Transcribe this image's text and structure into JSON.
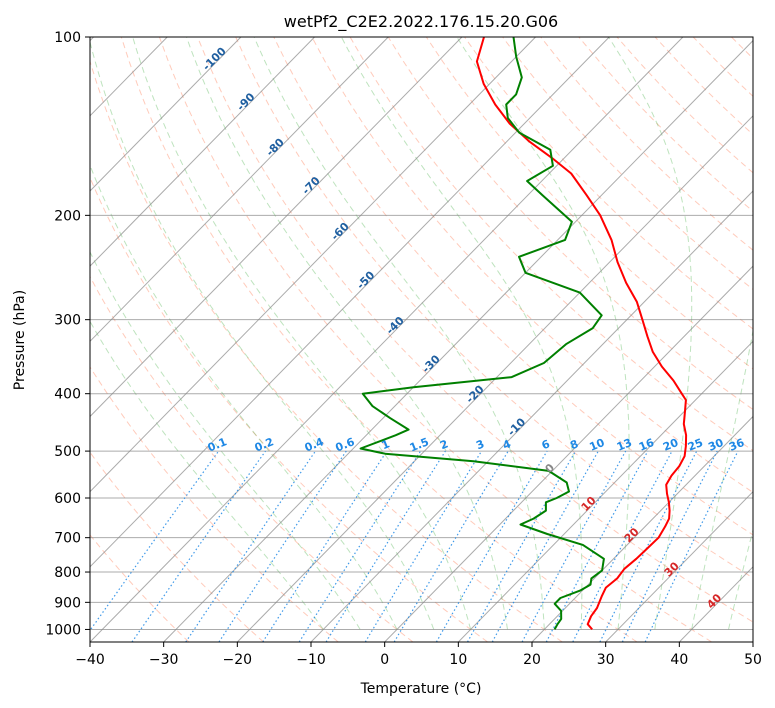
{
  "chart_data": {
    "type": "line",
    "title": "wetPf2_C2E2.2022.176.15.20.G06",
    "xlabel": "Temperature (°C)",
    "ylabel": "Pressure (hPa)",
    "xlim": [
      -40,
      50
    ],
    "ylim": [
      1050,
      100
    ],
    "x_ticks": [
      "−40",
      "−30",
      "−20",
      "−10",
      "0",
      "10",
      "20",
      "30",
      "40",
      "50"
    ],
    "y_ticks": [
      "100",
      "200",
      "300",
      "400",
      "500",
      "600",
      "700",
      "800",
      "900",
      "1000"
    ],
    "colors": {
      "temperature": "#ff0000",
      "dewpoint": "#008000",
      "dry_adiabat": "#ff8c69",
      "moist_adiabat": "#5cb85c",
      "mixing_ratio": "#1e88e5",
      "isotherm": "#888888",
      "dry_adiabat_label": "#1f5fa0",
      "moist_adiabat_label": "#d62728"
    },
    "series": [
      {
        "name": "Temperature",
        "points": [
          [
            26.5,
            1000
          ],
          [
            25.2,
            980
          ],
          [
            24.6,
            950
          ],
          [
            24.3,
            920
          ],
          [
            23.4,
            880
          ],
          [
            22.8,
            850
          ],
          [
            23.1,
            820
          ],
          [
            22.8,
            790
          ],
          [
            23.1,
            760
          ],
          [
            23.2,
            730
          ],
          [
            23.3,
            700
          ],
          [
            22.7,
            670
          ],
          [
            22.2,
            650
          ],
          [
            21.2,
            630
          ],
          [
            20.0,
            610
          ],
          [
            18.6,
            590
          ],
          [
            17.3,
            570
          ],
          [
            16.8,
            550
          ],
          [
            16.6,
            530
          ],
          [
            16.0,
            510
          ],
          [
            14.8,
            490
          ],
          [
            13.4,
            470
          ],
          [
            11.6,
            450
          ],
          [
            10.2,
            430
          ],
          [
            8.7,
            410
          ],
          [
            7.3,
            400
          ],
          [
            4.4,
            380
          ],
          [
            1.0,
            360
          ],
          [
            -2.2,
            340
          ],
          [
            -5.0,
            320
          ],
          [
            -7.9,
            300
          ],
          [
            -11.0,
            280
          ],
          [
            -15.0,
            260
          ],
          [
            -18.9,
            240
          ],
          [
            -22.7,
            220
          ],
          [
            -27.5,
            200
          ],
          [
            -32.0,
            185
          ],
          [
            -37.0,
            170
          ],
          [
            -41.7,
            160
          ],
          [
            -47.0,
            150
          ],
          [
            -52.0,
            140
          ],
          [
            -56.5,
            130
          ],
          [
            -60.8,
            120
          ],
          [
            -64.7,
            110
          ],
          [
            -67.0,
            100
          ]
        ]
      },
      {
        "name": "Dewpoint",
        "points": [
          [
            21.4,
            1000
          ],
          [
            21.1,
            980
          ],
          [
            20.9,
            960
          ],
          [
            19.8,
            930
          ],
          [
            18.0,
            905
          ],
          [
            18.0,
            885
          ],
          [
            19.7,
            860
          ],
          [
            20.3,
            840
          ],
          [
            19.6,
            820
          ],
          [
            20.0,
            795
          ],
          [
            18.7,
            760
          ],
          [
            14.0,
            720
          ],
          [
            7.7,
            690
          ],
          [
            2.8,
            665
          ],
          [
            3.8,
            650
          ],
          [
            4.4,
            630
          ],
          [
            3.3,
            610
          ],
          [
            4.2,
            600
          ],
          [
            5.0,
            585
          ],
          [
            3.5,
            565
          ],
          [
            -0.5,
            540
          ],
          [
            -12.0,
            520
          ],
          [
            -25.0,
            505
          ],
          [
            -29.0,
            495
          ],
          [
            -26.0,
            470
          ],
          [
            -25.0,
            460
          ],
          [
            -29.0,
            440
          ],
          [
            -33.0,
            420
          ],
          [
            -36.0,
            400
          ],
          [
            -30.0,
            390
          ],
          [
            -18.0,
            375
          ],
          [
            -15.5,
            355
          ],
          [
            -15.0,
            330
          ],
          [
            -13.5,
            310
          ],
          [
            -14.0,
            295
          ],
          [
            -20.0,
            270
          ],
          [
            -30.0,
            250
          ],
          [
            -33.0,
            235
          ],
          [
            -29.0,
            220
          ],
          [
            -30.5,
            205
          ],
          [
            -38.0,
            185
          ],
          [
            -42.0,
            175
          ],
          [
            -40.5,
            165
          ],
          [
            -43.0,
            155
          ],
          [
            -49.5,
            145
          ],
          [
            -53.0,
            137
          ],
          [
            -55.0,
            130
          ],
          [
            -55.0,
            125
          ],
          [
            -56.5,
            117
          ],
          [
            -60.0,
            108
          ],
          [
            -63.0,
            100
          ]
        ]
      }
    ],
    "dry_adiabat_labels": [
      "-100",
      "-90",
      "-80",
      "-70",
      "-60",
      "-50",
      "-40",
      "-30",
      "-20",
      "-10",
      "0"
    ],
    "moist_adiabat_labels": [
      "10",
      "20",
      "30",
      "40"
    ],
    "mixing_ratio_labels": [
      "0.1",
      "0.2",
      "0.4",
      "0.6",
      "1",
      "1.5",
      "2",
      "3",
      "4",
      "6",
      "8",
      "10",
      "13",
      "16",
      "20",
      "25",
      "30",
      "36"
    ],
    "mixing_ratio_values": [
      0.1,
      0.2,
      0.4,
      0.6,
      1,
      1.5,
      2,
      3,
      4,
      6,
      8,
      10,
      13,
      16,
      20,
      25,
      30,
      36
    ]
  }
}
